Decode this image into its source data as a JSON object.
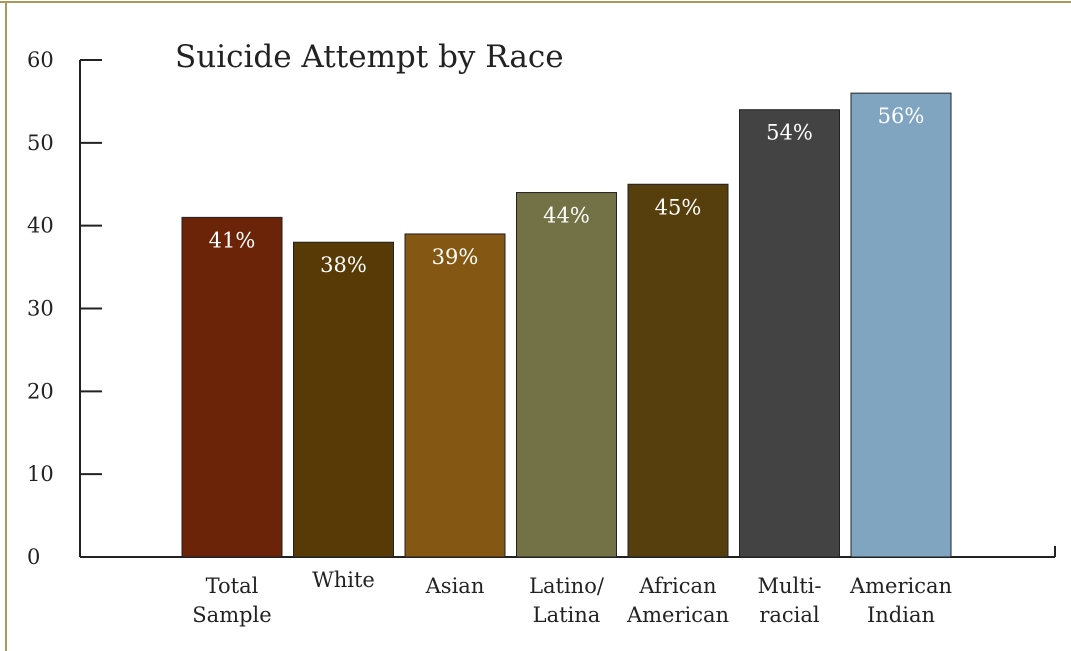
{
  "chart_data": {
    "type": "bar",
    "title": "Suicide Attempt by Race",
    "xlabel": "",
    "ylabel": "",
    "ylim": [
      0,
      60
    ],
    "yticks": [
      0,
      10,
      20,
      30,
      40,
      50,
      60
    ],
    "grid": false,
    "categories": [
      [
        "Total",
        "Sample"
      ],
      [
        "White"
      ],
      [
        "Asian"
      ],
      [
        "Latino/",
        "Latina"
      ],
      [
        "African",
        "American"
      ],
      [
        "Multi-",
        "racial"
      ],
      [
        "American",
        "Indian"
      ]
    ],
    "values": [
      41,
      38,
      39,
      44,
      45,
      54,
      56
    ],
    "data_labels": [
      "41%",
      "38%",
      "39%",
      "44%",
      "45%",
      "54%",
      "56%"
    ],
    "colors": [
      "#6b2408",
      "#573a06",
      "#845712",
      "#737246",
      "#563f0d",
      "#434344",
      "#80a5c1"
    ],
    "frame_color": "#a89a5c"
  }
}
